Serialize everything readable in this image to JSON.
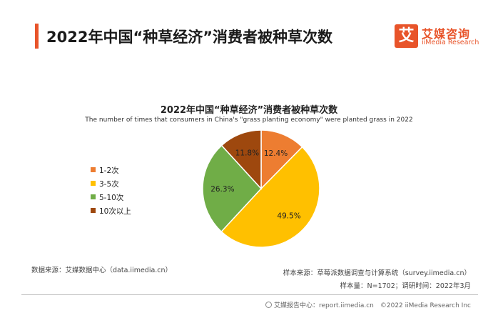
{
  "header": {
    "title": "2022年中国“种草经济”消费者被种草次数",
    "logo_mark": "艾",
    "logo_cn": "艾媒咨询",
    "logo_en": "iiMedia Research",
    "accent_color": "#e8542a"
  },
  "chart_data": {
    "type": "pie",
    "title": "2022年中国“种草经济”消费者被种草次数",
    "subtitle": "The number of times that consumers in China's \"grass planting economy\" were planted grass in 2022",
    "legend_position": "left",
    "slices": [
      {
        "label": "1-2次",
        "value": 12.4,
        "value_label": "12.4%",
        "color": "#ed7d31"
      },
      {
        "label": "3-5次",
        "value": 49.5,
        "value_label": "49.5%",
        "color": "#ffc000"
      },
      {
        "label": "5-10次",
        "value": 26.3,
        "value_label": "26.3%",
        "color": "#70ad47"
      },
      {
        "label": "10次以上",
        "value": 11.8,
        "value_label": "11.8%",
        "color": "#9e480e"
      }
    ]
  },
  "sources": {
    "data_source": "数据来源：艾媒数据中心（data.iimedia.cn）",
    "sample_source": "样本来源：草莓派数据调查与计算系统（survey.iimedia.cn）",
    "sample_info": "样本量：N=1702；调研时间：2022年3月"
  },
  "footer": {
    "text": "艾媒报告中心：report.iimedia.cn　©2022  iiMedia Research  Inc"
  }
}
